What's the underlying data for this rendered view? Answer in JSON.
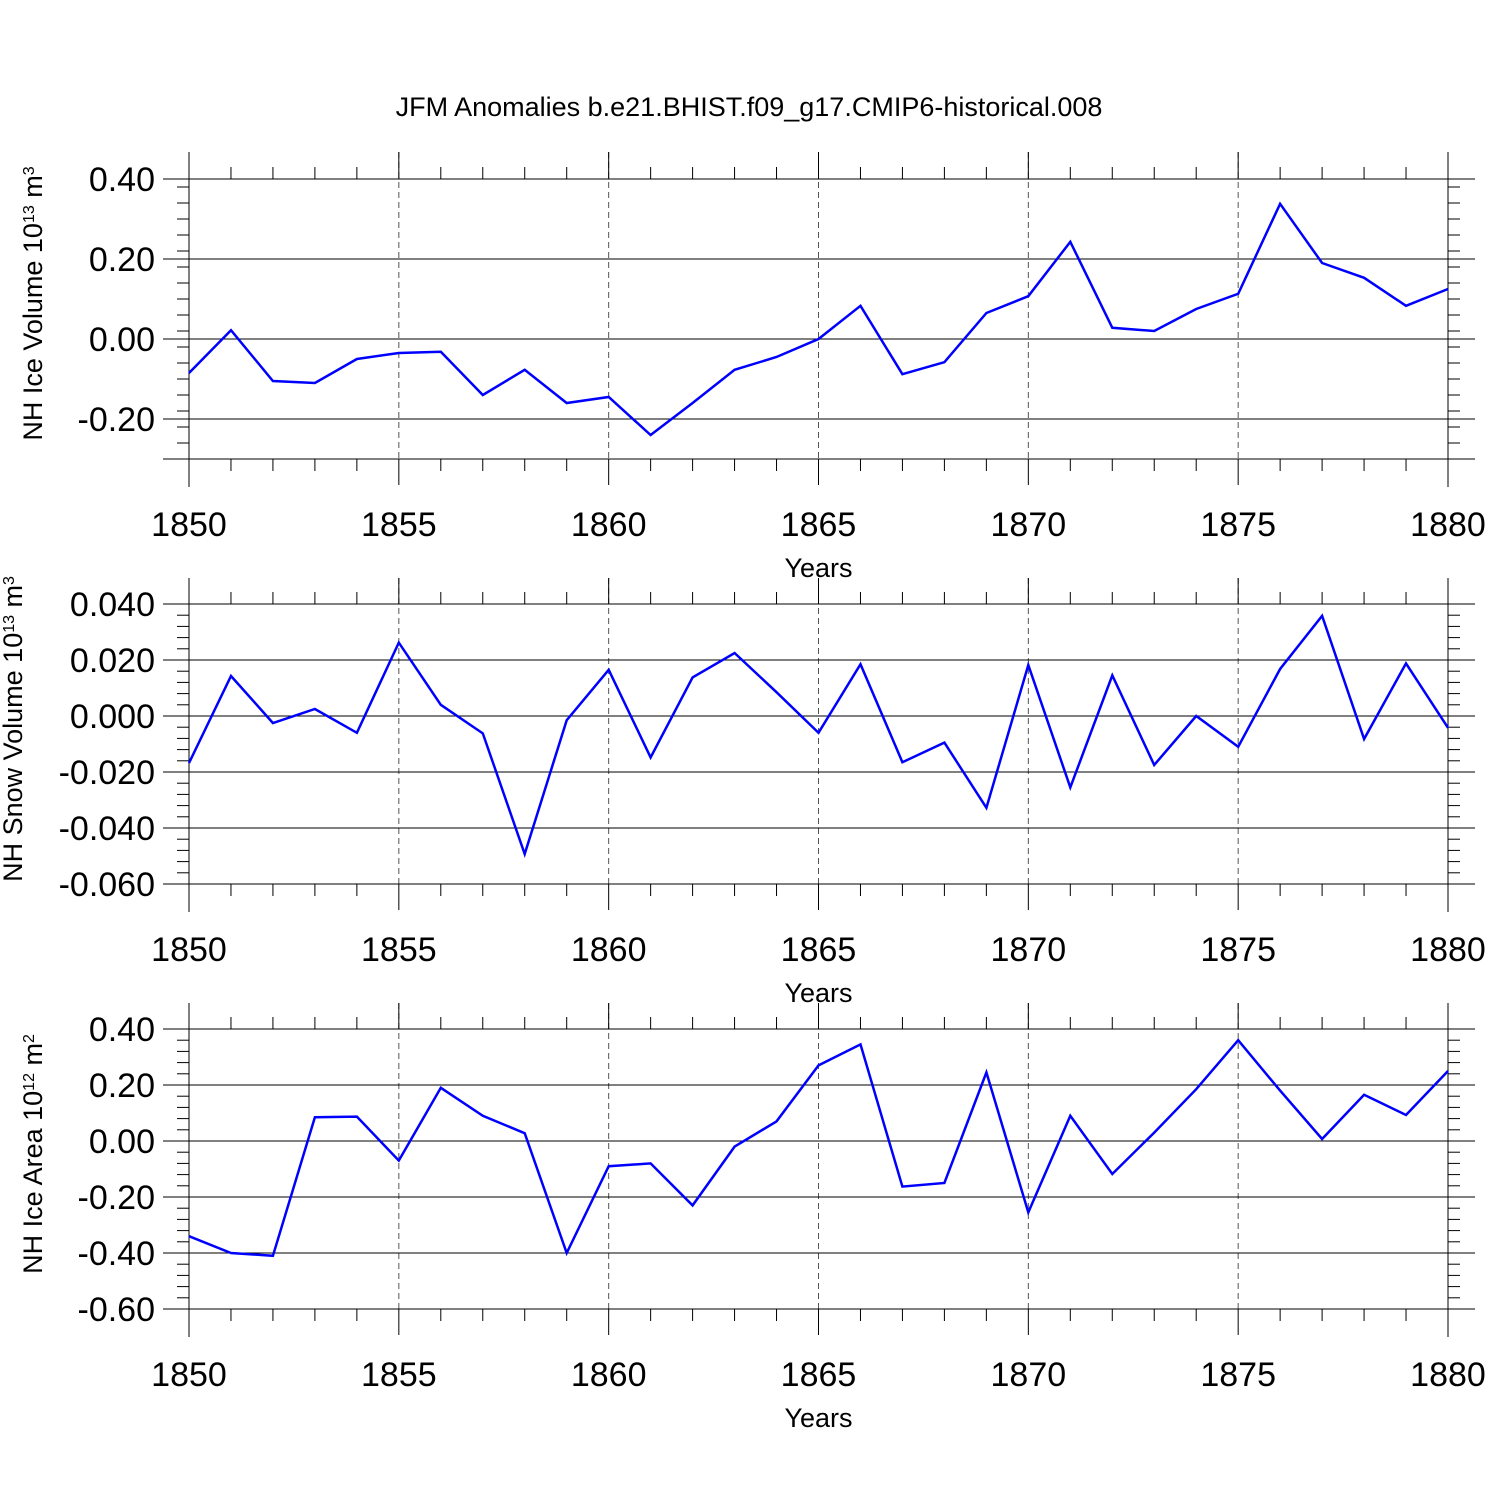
{
  "title": "JFM Anomalies b.e21.BHIST.f09_g17.CMIP6-historical.008",
  "line_color": "#0000ff",
  "gridline_color": "#555555",
  "chart_data": [
    {
      "type": "line",
      "ylabel": "NH Ice Volume 10",
      "ylabel_exponent": "13",
      "ylabel_unit": " m",
      "ylabel_unit_exponent": "3",
      "xlabel": "Years",
      "xlim": [
        1850,
        1880
      ],
      "ylim": [
        -0.3,
        0.4
      ],
      "xticks": [
        1850,
        1855,
        1860,
        1865,
        1870,
        1875,
        1880
      ],
      "yticks": [
        -0.2,
        0.0,
        0.2,
        0.4
      ],
      "ytick_labels": [
        "-0.20",
        "0.00",
        "0.20",
        "0.40"
      ],
      "x": [
        1850,
        1851,
        1852,
        1853,
        1854,
        1855,
        1856,
        1857,
        1858,
        1859,
        1860,
        1861,
        1862,
        1863,
        1864,
        1865,
        1866,
        1867,
        1868,
        1869,
        1870,
        1871,
        1872,
        1873,
        1874,
        1875,
        1876,
        1877,
        1878,
        1879,
        1880
      ],
      "series": [
        {
          "values": [
            -0.085,
            0.022,
            -0.105,
            -0.11,
            -0.05,
            -0.035,
            -0.032,
            -0.14,
            -0.077,
            -0.16,
            -0.145,
            -0.24,
            -0.16,
            -0.077,
            -0.045,
            0.0,
            0.083,
            -0.088,
            -0.058,
            0.065,
            0.107,
            0.243,
            0.028,
            0.02,
            0.075,
            0.113,
            0.338,
            0.19,
            0.153,
            0.083,
            0.125
          ]
        }
      ]
    },
    {
      "type": "line",
      "ylabel": "NH Snow Volume 10",
      "ylabel_exponent": "13",
      "ylabel_unit": " m",
      "ylabel_unit_exponent": "3",
      "xlabel": "Years",
      "xlim": [
        1850,
        1880
      ],
      "ylim": [
        -0.06,
        0.04
      ],
      "xticks": [
        1850,
        1855,
        1860,
        1865,
        1870,
        1875,
        1880
      ],
      "yticks": [
        -0.06,
        -0.04,
        -0.02,
        0.0,
        0.02,
        0.04
      ],
      "ytick_labels": [
        "-0.060",
        "-0.040",
        "-0.020",
        "0.000",
        "0.020",
        "0.040"
      ],
      "x": [
        1850,
        1851,
        1852,
        1853,
        1854,
        1855,
        1856,
        1857,
        1858,
        1859,
        1860,
        1861,
        1862,
        1863,
        1864,
        1865,
        1866,
        1867,
        1868,
        1869,
        1870,
        1871,
        1872,
        1873,
        1874,
        1875,
        1876,
        1877,
        1878,
        1879,
        1880
      ],
      "series": [
        {
          "values": [
            -0.0168,
            0.0143,
            -0.0025,
            0.0025,
            -0.006,
            0.0262,
            0.004,
            -0.0062,
            -0.0493,
            -0.0015,
            0.0165,
            -0.0148,
            0.0138,
            0.0225,
            0.0085,
            -0.006,
            0.0185,
            -0.0165,
            -0.0095,
            -0.0328,
            0.0182,
            -0.0255,
            0.0145,
            -0.0175,
            0.0,
            -0.011,
            0.0168,
            0.0358,
            -0.0082,
            0.0188,
            -0.0042
          ]
        }
      ]
    },
    {
      "type": "line",
      "ylabel": "NH Ice Area 10",
      "ylabel_exponent": "12",
      "ylabel_unit": " m",
      "ylabel_unit_exponent": "2",
      "xlabel": "Years",
      "xlim": [
        1850,
        1880
      ],
      "ylim": [
        -0.6,
        0.4
      ],
      "xticks": [
        1850,
        1855,
        1860,
        1865,
        1870,
        1875,
        1880
      ],
      "yticks": [
        -0.6,
        -0.4,
        -0.2,
        0.0,
        0.2,
        0.4
      ],
      "ytick_labels": [
        "-0.60",
        "-0.40",
        "-0.20",
        "0.00",
        "0.20",
        "0.40"
      ],
      "x": [
        1850,
        1851,
        1852,
        1853,
        1854,
        1855,
        1856,
        1857,
        1858,
        1859,
        1860,
        1861,
        1862,
        1863,
        1864,
        1865,
        1866,
        1867,
        1868,
        1869,
        1870,
        1871,
        1872,
        1873,
        1874,
        1875,
        1876,
        1877,
        1878,
        1879,
        1880
      ],
      "series": [
        {
          "values": [
            -0.34,
            -0.4,
            -0.41,
            0.085,
            0.087,
            -0.07,
            0.19,
            0.09,
            0.028,
            -0.4,
            -0.09,
            -0.08,
            -0.23,
            -0.02,
            0.07,
            0.27,
            0.345,
            -0.163,
            -0.15,
            0.245,
            -0.255,
            0.09,
            -0.118,
            0.03,
            0.185,
            0.36,
            0.18,
            0.007,
            0.165,
            0.093,
            0.25
          ]
        }
      ]
    }
  ]
}
